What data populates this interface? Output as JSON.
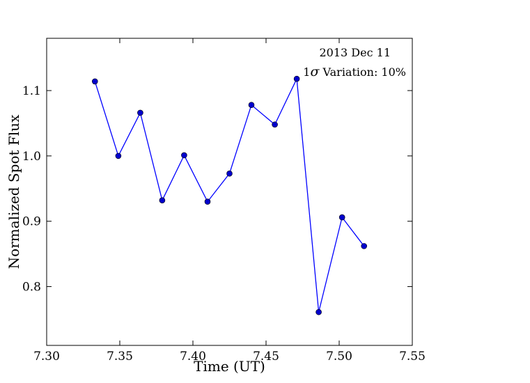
{
  "chart_data": {
    "type": "line",
    "xlabel": "Time (UT)",
    "ylabel": "Normalized Spot Flux",
    "xlim": [
      7.3,
      7.55
    ],
    "ylim": [
      0.71,
      1.18
    ],
    "xticks": [
      7.3,
      7.35,
      7.4,
      7.45,
      7.5,
      7.55
    ],
    "xtick_labels": [
      "7.30",
      "7.35",
      "7.40",
      "7.45",
      "7.50",
      "7.55"
    ],
    "yticks": [
      0.8,
      0.9,
      1.0,
      1.1
    ],
    "ytick_labels": [
      "0.8",
      "0.9",
      "1.0",
      "1.1"
    ],
    "grid": false,
    "annotations": {
      "date": "2013 Dec 11",
      "variation_prefix": "1",
      "variation_symbol": "σ",
      "variation_rest": " Variation: 10%"
    },
    "series": [
      {
        "color": "#0000ff",
        "marker_color": "#0000cc",
        "x": [
          7.333,
          7.349,
          7.364,
          7.379,
          7.394,
          7.41,
          7.425,
          7.44,
          7.456,
          7.471,
          7.486,
          7.502,
          7.517
        ],
        "y": [
          1.114,
          1.0,
          1.066,
          0.932,
          1.001,
          0.93,
          0.973,
          1.078,
          1.048,
          1.118,
          0.761,
          0.906,
          0.862
        ]
      }
    ]
  }
}
